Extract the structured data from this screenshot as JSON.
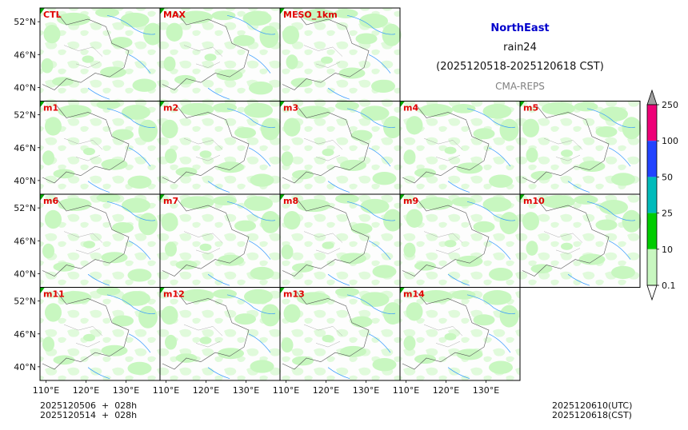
{
  "title": {
    "region": "NorthEast",
    "variable": "rain24",
    "period": "(2025120518-2025120618 CST)",
    "source": "CMA-REPS"
  },
  "footer": {
    "left_line1": "2025120506  +  028h",
    "left_line2": "2025120514  +  028h",
    "right_line1": "2025120610(UTC)",
    "right_line2": "2025120618(CST)"
  },
  "colors": {
    "panel_label": "#e00000",
    "light_rain": "#c8f7c0",
    "map_border": "#555555",
    "river": "#3399ff",
    "frame": "#000000"
  },
  "chart_data": {
    "type": "map_panels",
    "panels": [
      "CTL",
      "MAX",
      "MESO_1km",
      "m1",
      "m2",
      "m3",
      "m4",
      "m5",
      "m6",
      "m7",
      "m8",
      "m9",
      "m10",
      "m11",
      "m12",
      "m13",
      "m14"
    ],
    "lat_ticks": [
      "52°N",
      "46°N",
      "40°N"
    ],
    "lon_ticks": [
      "110°E",
      "120°E",
      "130°E"
    ],
    "lat_range": [
      37.5,
      54.5
    ],
    "lon_range": [
      108.5,
      138.5
    ],
    "colorbar": {
      "levels": [
        "0.1",
        "10",
        "25",
        "50",
        "100",
        "250"
      ],
      "colors": [
        "#c8f7c0",
        "#00cc00",
        "#00bbbb",
        "#2244ff",
        "#ee0077",
        "#a0a0a0"
      ]
    }
  }
}
